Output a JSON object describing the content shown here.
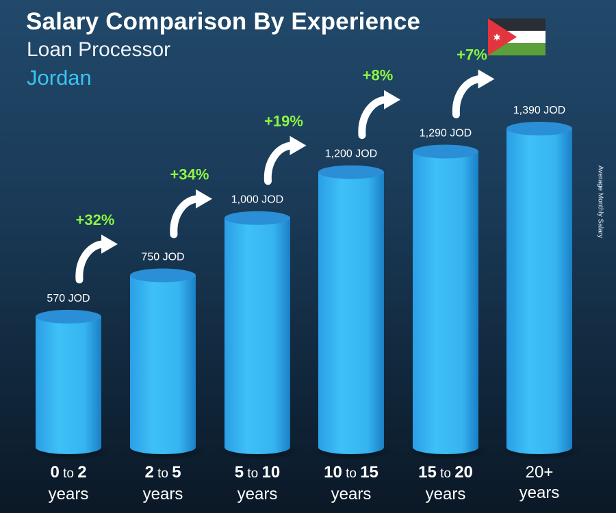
{
  "header": {
    "title": "Salary Comparison By Experience",
    "subtitle": "Loan Processor",
    "country": "Jordan"
  },
  "colors": {
    "bar": "#38b8f2",
    "bar_dark": "#1b7fc4",
    "bar_top": "#2a8fd6",
    "percent": "#8cf542",
    "text": "#ffffff",
    "country": "#3cc2f3"
  },
  "flag": {
    "icon": "jordan-flag-icon",
    "colors": {
      "black": "#2a2d33",
      "white": "#ffffff",
      "green": "#5ca03a",
      "red": "#e3353e"
    }
  },
  "chart_data": {
    "type": "bar",
    "ylabel": "Average Monthly Salary",
    "unit": "JOD",
    "categories": [
      {
        "line1": "0 to 2",
        "line2": "years"
      },
      {
        "line1": "2 to 5",
        "line2": "years"
      },
      {
        "line1": "5 to 10",
        "line2": "years"
      },
      {
        "line1": "10 to 15",
        "line2": "years"
      },
      {
        "line1": "15 to 20",
        "line2": "years"
      },
      {
        "line1": "20+",
        "line2": "years"
      }
    ],
    "values": [
      570,
      750,
      1000,
      1200,
      1290,
      1390
    ],
    "value_labels": [
      "570 JOD",
      "750 JOD",
      "1,000 JOD",
      "1,200 JOD",
      "1,290 JOD",
      "1,390 JOD"
    ],
    "increases": [
      "+32%",
      "+34%",
      "+19%",
      "+8%",
      "+7%"
    ],
    "ylim": [
      0,
      1390
    ]
  }
}
